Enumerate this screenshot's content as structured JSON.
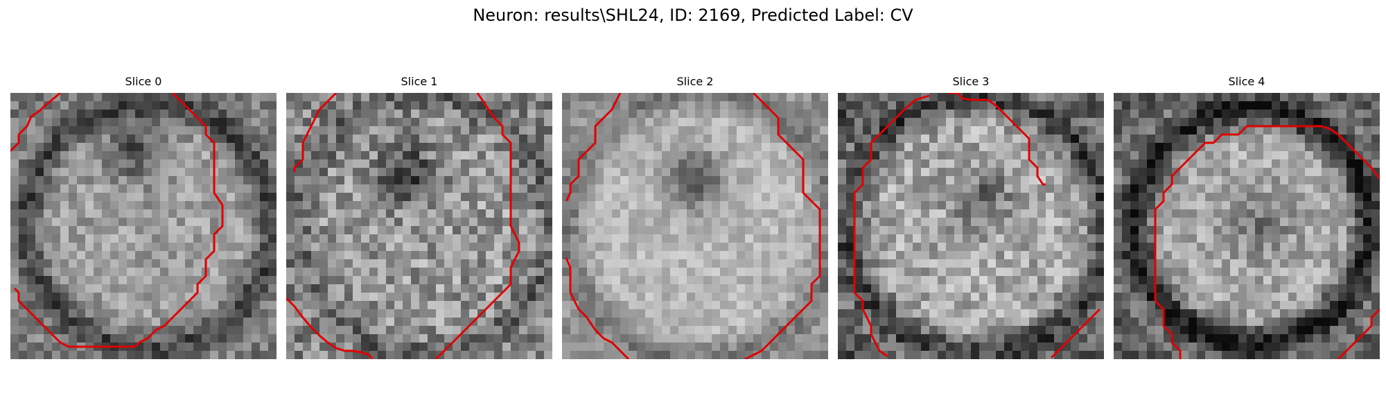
{
  "figure": {
    "title": "Neuron: results\\SHL24, ID: 2169, Predicted Label: CV"
  },
  "contour_color": "#e00000",
  "panels": [
    {
      "title": "Slice 0",
      "seed": 11,
      "base": 0.62,
      "contrast": 0.28,
      "noise": 0.3,
      "ring_r": 0.46,
      "ring_dark": 0.35,
      "blob_x": 0.46,
      "blob_y": 0.22,
      "blob_dark": 0.3,
      "edge_dark": 0.15
    },
    {
      "title": "Slice 1",
      "seed": 23,
      "base": 0.6,
      "contrast": 0.22,
      "noise": 0.42,
      "ring_r": 0.48,
      "ring_dark": 0.2,
      "blob_x": 0.45,
      "blob_y": 0.3,
      "blob_dark": 0.35,
      "edge_dark": 0.1
    },
    {
      "title": "Slice 2",
      "seed": 37,
      "base": 0.72,
      "contrast": 0.2,
      "noise": 0.22,
      "ring_r": 0.5,
      "ring_dark": 0.25,
      "blob_x": 0.5,
      "blob_y": 0.32,
      "blob_dark": 0.4,
      "edge_dark": 0.2
    },
    {
      "title": "Slice 3",
      "seed": 51,
      "base": 0.66,
      "contrast": 0.2,
      "noise": 0.38,
      "ring_r": 0.48,
      "ring_dark": 0.4,
      "blob_x": 0.55,
      "blob_y": 0.4,
      "blob_dark": 0.25,
      "edge_dark": 0.35
    },
    {
      "title": "Slice 4",
      "seed": 67,
      "base": 0.66,
      "contrast": 0.2,
      "noise": 0.32,
      "ring_r": 0.44,
      "ring_dark": 0.55,
      "blob_x": 0.55,
      "blob_y": 0.5,
      "blob_dark": 0.2,
      "edge_dark": 0.3
    }
  ]
}
